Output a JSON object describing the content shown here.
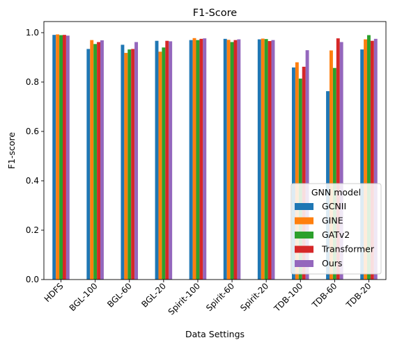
{
  "chart_data": {
    "type": "bar",
    "title": "F1-Score",
    "xlabel": "Data Settings",
    "ylabel": "F1-score",
    "ylim": [
      0,
      1.045
    ],
    "yticks": [
      "0.0",
      "0.2",
      "0.4",
      "0.6",
      "0.8",
      "1.0"
    ],
    "ytick_values": [
      0,
      0.2,
      0.4,
      0.6,
      0.8,
      1.0
    ],
    "categories": [
      "HDFS",
      "BGL-100",
      "BGL-60",
      "BGL-20",
      "Spirit-100",
      "Spirit-60",
      "Spirit-20",
      "TDB-100",
      "TDB-60",
      "TDB-20"
    ],
    "legend": {
      "title": "GNN model",
      "placement": "lower right"
    },
    "grid": false,
    "series": [
      {
        "name": "GCNII",
        "color": "#1f77b4",
        "values": [
          0.991,
          0.934,
          0.951,
          0.967,
          0.97,
          0.975,
          0.973,
          0.859,
          0.763,
          0.932
        ]
      },
      {
        "name": "GINE",
        "color": "#ff7f0e",
        "values": [
          0.993,
          0.97,
          0.918,
          0.923,
          0.978,
          0.971,
          0.976,
          0.88,
          0.928,
          0.973
        ]
      },
      {
        "name": "GATv2",
        "color": "#2ca02c",
        "values": [
          0.99,
          0.954,
          0.932,
          0.94,
          0.97,
          0.962,
          0.974,
          0.814,
          0.857,
          0.99
        ]
      },
      {
        "name": "Transformer",
        "color": "#d62728",
        "values": [
          0.991,
          0.962,
          0.934,
          0.967,
          0.975,
          0.97,
          0.966,
          0.862,
          0.977,
          0.967
        ]
      },
      {
        "name": "Ours",
        "color": "#9467bd",
        "values": [
          0.988,
          0.969,
          0.962,
          0.965,
          0.977,
          0.973,
          0.97,
          0.929,
          0.962,
          0.975
        ]
      }
    ]
  }
}
